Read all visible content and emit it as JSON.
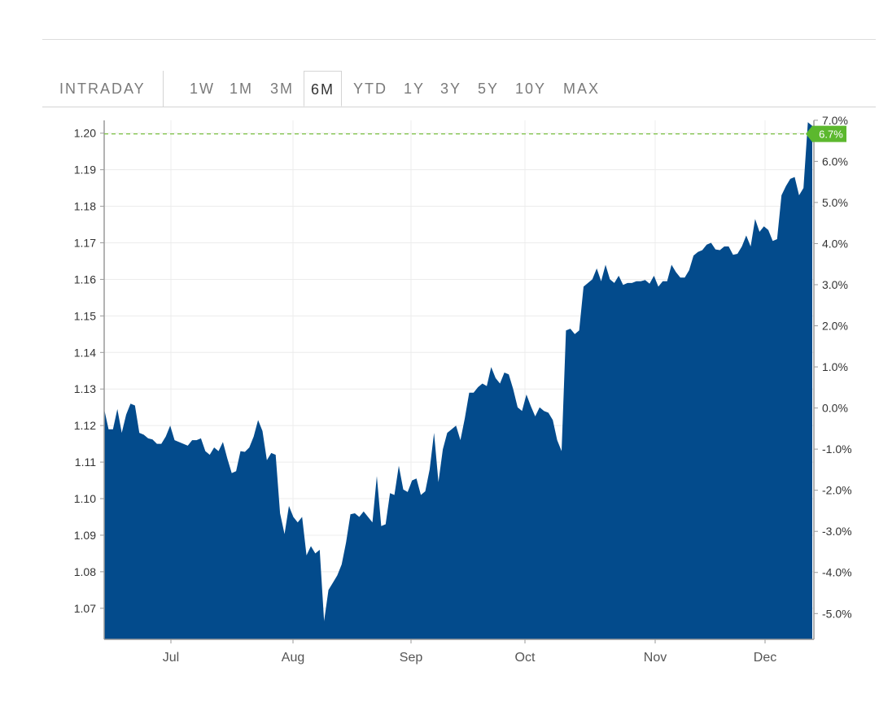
{
  "tabs": [
    {
      "label": "INTRADAY",
      "active": false
    },
    {
      "label": "1W",
      "active": false
    },
    {
      "label": "1M",
      "active": false
    },
    {
      "label": "3M",
      "active": false
    },
    {
      "label": "6M",
      "active": true
    },
    {
      "label": "YTD",
      "active": false
    },
    {
      "label": "1Y",
      "active": false
    },
    {
      "label": "3Y",
      "active": false
    },
    {
      "label": "5Y",
      "active": false
    },
    {
      "label": "10Y",
      "active": false
    },
    {
      "label": "MAX",
      "active": false
    }
  ],
  "colors": {
    "area_fill": "#034b8c",
    "current_marker": "#5cb82e",
    "reference_line": "#7cc242",
    "grid": "#ececec",
    "axis_text": "#333333"
  },
  "chart_data": {
    "type": "area",
    "x_labels": [
      "Jul",
      "Aug",
      "Sep",
      "Oct",
      "Nov",
      "Dec"
    ],
    "ylim": [
      1.0615,
      1.2035
    ],
    "yticks_left": [
      "1.07",
      "1.08",
      "1.09",
      "1.10",
      "1.11",
      "1.12",
      "1.13",
      "1.14",
      "1.15",
      "1.16",
      "1.17",
      "1.18",
      "1.19",
      "1.20"
    ],
    "yticks_left_values": [
      1.07,
      1.08,
      1.09,
      1.1,
      1.11,
      1.12,
      1.13,
      1.14,
      1.15,
      1.16,
      1.17,
      1.18,
      1.19,
      1.2
    ],
    "yticks_right": [
      "-5.0%",
      "-4.0%",
      "-3.0%",
      "-2.0%",
      "-1.0%",
      "0.0%",
      "1.0%",
      "2.0%",
      "3.0%",
      "4.0%",
      "5.0%",
      "6.0%",
      "7.0%"
    ],
    "yticks_right_values": [
      -5,
      -4,
      -3,
      -2,
      -1,
      0,
      1,
      2,
      3,
      4,
      5,
      6,
      7
    ],
    "pct_base": 1.1248,
    "current_value": 1.1998,
    "current_label": "6.7%",
    "grid": true,
    "values": [
      1.1245,
      1.119,
      1.119,
      1.1245,
      1.118,
      1.123,
      1.126,
      1.1255,
      1.118,
      1.1175,
      1.1165,
      1.1162,
      1.115,
      1.115,
      1.117,
      1.12,
      1.116,
      1.1155,
      1.115,
      1.1145,
      1.116,
      1.116,
      1.1165,
      1.113,
      1.112,
      1.114,
      1.113,
      1.1155,
      1.111,
      1.107,
      1.1075,
      1.113,
      1.1128,
      1.114,
      1.117,
      1.1215,
      1.1185,
      1.1105,
      1.1125,
      1.112,
      1.096,
      1.0903,
      1.098,
      1.095,
      1.0935,
      1.095,
      1.0845,
      1.087,
      1.085,
      1.086,
      1.0665,
      1.075,
      1.077,
      1.079,
      1.082,
      1.088,
      1.0957,
      1.096,
      1.095,
      1.0965,
      1.095,
      1.0935,
      1.1062,
      1.0925,
      1.093,
      1.1015,
      1.101,
      1.109,
      1.1025,
      1.1018,
      1.105,
      1.1055,
      1.101,
      1.102,
      1.108,
      1.118,
      1.1045,
      1.1135,
      1.118,
      1.119,
      1.12,
      1.116,
      1.122,
      1.129,
      1.129,
      1.1305,
      1.1315,
      1.1308,
      1.136,
      1.133,
      1.1315,
      1.1345,
      1.134,
      1.13,
      1.125,
      1.124,
      1.1285,
      1.1253,
      1.1225,
      1.125,
      1.124,
      1.1235,
      1.1215,
      1.116,
      1.113,
      1.146,
      1.1465,
      1.145,
      1.146,
      1.158,
      1.159,
      1.16,
      1.163,
      1.1595,
      1.164,
      1.16,
      1.159,
      1.161,
      1.1585,
      1.159,
      1.159,
      1.1595,
      1.1595,
      1.1598,
      1.1588,
      1.161,
      1.158,
      1.1595,
      1.1595,
      1.164,
      1.162,
      1.1605,
      1.1605,
      1.1625,
      1.1665,
      1.1675,
      1.168,
      1.1695,
      1.17,
      1.1682,
      1.168,
      1.169,
      1.169,
      1.1667,
      1.167,
      1.169,
      1.172,
      1.169,
      1.1765,
      1.173,
      1.1745,
      1.1735,
      1.1705,
      1.171,
      1.183,
      1.1855,
      1.1875,
      1.188,
      1.183,
      1.185,
      1.203,
      1.202
    ]
  }
}
